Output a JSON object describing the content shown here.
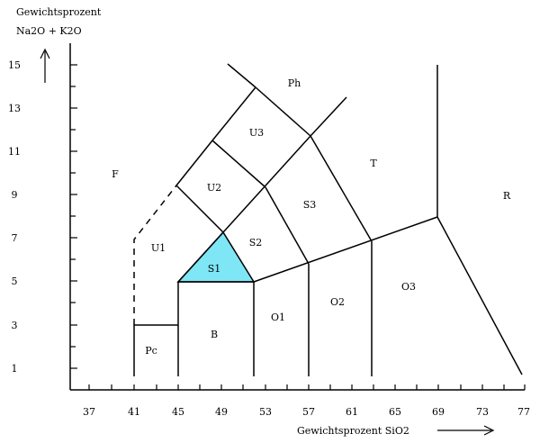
{
  "diagram": {
    "y_title_line1": "Gewichtsprozent",
    "y_title_line2": "Na2O + K2O",
    "x_title": "Gewichtsprozent  SiO2",
    "x_ticks": [
      "37",
      "41",
      "45",
      "49",
      "53",
      "57",
      "61",
      "65",
      "69",
      "73",
      "77"
    ],
    "y_ticks": [
      "1",
      "3",
      "5",
      "7",
      "9",
      "11",
      "13",
      "15"
    ],
    "fields": {
      "F": "F",
      "Ph": "Ph",
      "T": "T",
      "R": "R",
      "U1": "U1",
      "U2": "U2",
      "U3": "U3",
      "S1": "S1",
      "S2": "S2",
      "S3": "S3",
      "O1": "O1",
      "O2": "O2",
      "O3": "O3",
      "B": "B",
      "Pc": "Pc"
    },
    "highlight": {
      "field": "S1",
      "color": "#7fe6f5"
    }
  }
}
